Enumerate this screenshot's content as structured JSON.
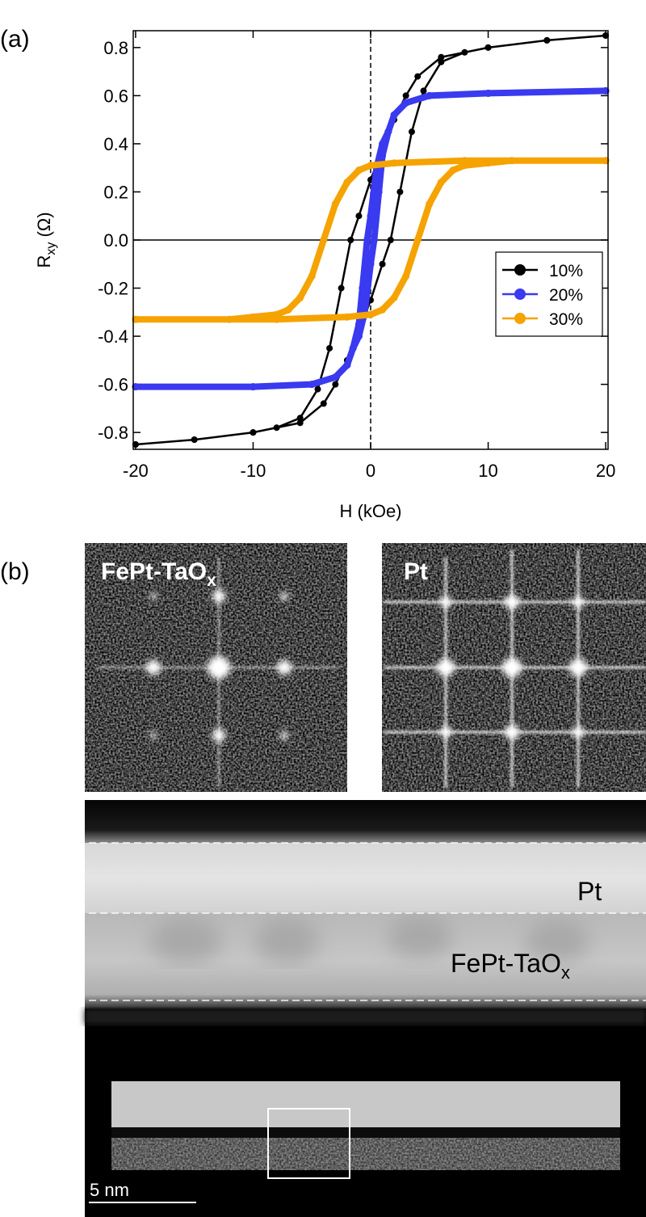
{
  "panel_a_label": "(a)",
  "chart_data": {
    "type": "line",
    "x_label": "H (kOe)",
    "y_label": {
      "text": "R",
      "sub": "xy",
      "suffix": " (Ω)"
    },
    "xlim": [
      -20.2,
      20.2
    ],
    "ylim": [
      -0.87,
      0.87
    ],
    "xticks": [
      -20,
      -10,
      0,
      10,
      20
    ],
    "yticks": [
      -0.8,
      -0.6,
      -0.4,
      -0.2,
      {
        "value": 0,
        "label": "0.0"
      },
      0.2,
      0.4,
      0.6,
      0.8
    ],
    "vline": 0,
    "hline": 0,
    "legend": "right",
    "series": [
      {
        "name": "10%",
        "color": "#000000",
        "line_width": 2.5,
        "marker_size": 4,
        "x": [
          20,
          15,
          10,
          6,
          4,
          3,
          2,
          1,
          0,
          -1,
          -1.7,
          -2.5,
          -3.5,
          -4.5,
          -6,
          -8,
          -10,
          -15,
          -20,
          -20,
          -15,
          -10,
          -6,
          -4,
          -3,
          -2,
          -1,
          0,
          1,
          1.7,
          2.5,
          3.5,
          4.5,
          6,
          8,
          10,
          15,
          20
        ],
        "values": [
          0.85,
          0.83,
          0.8,
          0.76,
          0.68,
          0.6,
          0.5,
          0.38,
          0.25,
          0.1,
          0,
          -0.2,
          -0.45,
          -0.62,
          -0.74,
          -0.78,
          -0.8,
          -0.83,
          -0.85,
          -0.85,
          -0.83,
          -0.8,
          -0.76,
          -0.68,
          -0.6,
          -0.5,
          -0.38,
          -0.25,
          -0.1,
          0,
          0.2,
          0.45,
          0.62,
          0.74,
          0.78,
          0.8,
          0.83,
          0.85
        ]
      },
      {
        "name": "20%",
        "color": "#3a3af0",
        "line_width": 8,
        "marker_size": 4.5,
        "x": [
          20,
          10,
          5,
          3,
          2,
          1.5,
          1,
          0.5,
          0,
          -0.3,
          -0.7,
          -1,
          -1.5,
          -2,
          -3,
          -5,
          -10,
          -20,
          -20,
          -10,
          -5,
          -3,
          -2,
          -1.5,
          -1,
          -0.5,
          0,
          0.3,
          0.7,
          1,
          1.5,
          2,
          3,
          5,
          10,
          20
        ],
        "values": [
          0.62,
          0.61,
          0.6,
          0.57,
          0.52,
          0.45,
          0.4,
          0.3,
          0.1,
          0,
          -0.2,
          -0.35,
          -0.45,
          -0.52,
          -0.57,
          -0.6,
          -0.61,
          -0.61,
          -0.61,
          -0.61,
          -0.6,
          -0.57,
          -0.52,
          -0.45,
          -0.4,
          -0.3,
          -0.1,
          0,
          0.2,
          0.35,
          0.45,
          0.52,
          0.57,
          0.6,
          0.61,
          0.62
        ]
      },
      {
        "name": "30%",
        "color": "#f5a300",
        "line_width": 8,
        "marker_size": 4.5,
        "x": [
          20,
          8,
          2,
          0,
          -1,
          -2,
          -3,
          -4,
          -5,
          -6,
          -7,
          -8,
          -10,
          -12,
          -20,
          -20,
          -8,
          -2,
          0,
          1,
          2,
          3,
          4,
          5,
          6,
          7,
          8,
          10,
          12,
          20
        ],
        "values": [
          0.33,
          0.33,
          0.32,
          0.31,
          0.29,
          0.24,
          0.15,
          0,
          -0.15,
          -0.24,
          -0.29,
          -0.31,
          -0.32,
          -0.33,
          -0.33,
          -0.33,
          -0.33,
          -0.32,
          -0.31,
          -0.29,
          -0.24,
          -0.15,
          0,
          0.15,
          0.24,
          0.29,
          0.31,
          0.32,
          0.33,
          0.33
        ]
      }
    ]
  },
  "panel_b": {
    "label": "(b)",
    "fft_left_label": {
      "text": "FePt-TaO",
      "sub": "x"
    },
    "fft_right_label": "Pt",
    "layer_pt": "Pt",
    "layer_fept": {
      "text": "FePt-TaO",
      "sub": "x"
    },
    "scale_bar": "5 nm"
  }
}
